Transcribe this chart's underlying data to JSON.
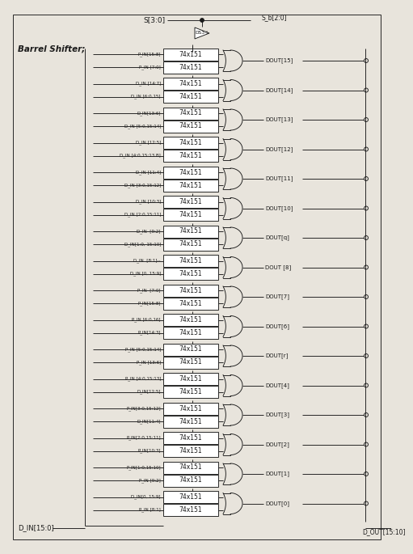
{
  "bg_color": "#e8e4dc",
  "ink": "#1a1a1a",
  "num_rows": 16,
  "mux_label": "74x151",
  "header_s": "S[3:0]",
  "header_sa": "S_b[2:0]",
  "inverter_label": "DS3-L",
  "main_label": "Barrel Shifter;",
  "bottom_label": "D_IN[15:0]",
  "bottom_right_label": "D_OUT[15:10]",
  "output_labels": [
    "DOUT[15]",
    "DOUT[14]",
    "DOUT[13]",
    "DOUT[12]",
    "DOUT[11]",
    "DOUT[10]",
    "DOUT[q]",
    "DOUT [8]",
    "DOUT[7]",
    "DOUT[6]",
    "DOUT[r]",
    "DOUT[4]",
    "DOUT[3]",
    "DOUT[2]",
    "DOUT[1]",
    "DOUT[0]"
  ],
  "input_pairs": [
    [
      "P_IN[15:8]",
      "P_IN [7:0]"
    ],
    [
      "D_IN [14:7]",
      "D_IN [6:0,15]"
    ],
    [
      "D_IN[13:6]",
      "D_IN [5:0,15:14]"
    ],
    [
      "D_IN [12:5]",
      "D_IN [4:0,15:13 B]"
    ],
    [
      "D_IN [11:4]",
      "D_IN [3:0,15:12]"
    ],
    [
      "D_IN [10:3]",
      "D_IN [2:0,15:11]"
    ],
    [
      "D_IN  [9:2]",
      "D_IN[1:0, 15:10]"
    ],
    [
      "D_IN  [8:1]--",
      "D_IN [0, 15:9]"
    ],
    [
      "P_IN  [7:0]",
      "P_IN[15:8]"
    ],
    [
      "P_IN [6:0,16]",
      "P_IN[14:3]"
    ],
    [
      "P_IN [5:0,15:14]",
      "P_IN [13:6]"
    ],
    [
      "P_IN [4:0,15:13]",
      "D_IN[12:5]"
    ],
    [
      "P_IN[3:0,15:12]",
      "D_IN[11:4]"
    ],
    [
      "P_IN[2:0,15:11]",
      "P_IN[10:3]"
    ],
    [
      "P_IN[1:0,15:10]",
      "P_IN [9:2]"
    ],
    [
      "D_IN[0, 15:9]",
      "P_IN [8:1]"
    ]
  ]
}
